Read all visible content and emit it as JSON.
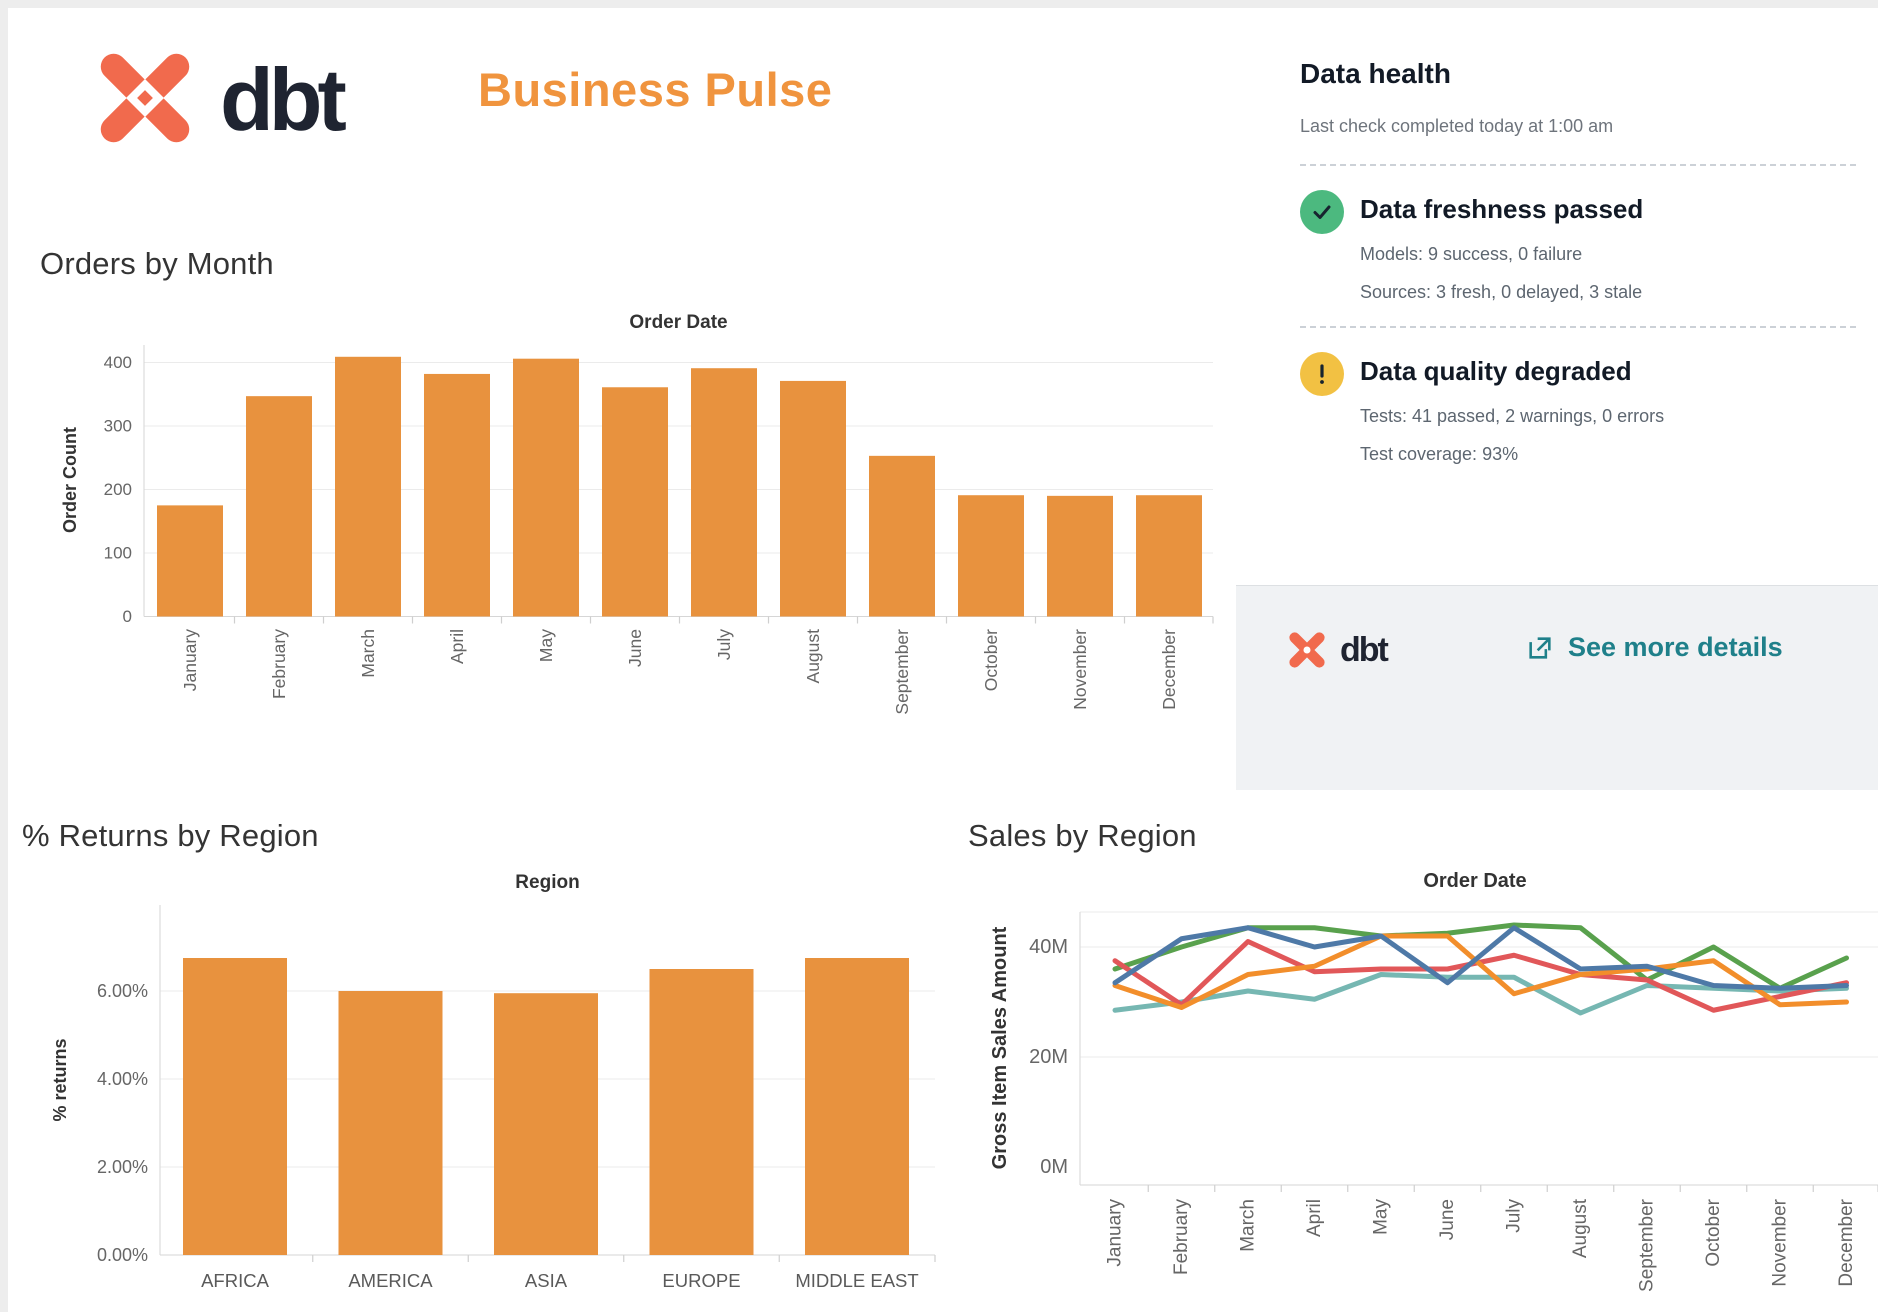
{
  "header": {
    "brand": "dbt",
    "title": "Business Pulse"
  },
  "data_health": {
    "title": "Data health",
    "subtitle": "Last check completed today at 1:00 am",
    "items": [
      {
        "status": "passed",
        "icon": "check-icon",
        "title": "Data freshness passed",
        "lines": [
          "Models: 9 success, 0 failure",
          "Sources: 3 fresh, 0 delayed, 3 stale"
        ]
      },
      {
        "status": "warning",
        "icon": "exclamation-icon",
        "title": "Data quality degraded",
        "lines": [
          "Tests: 41 passed, 2 warnings, 0 errors",
          "Test coverage: 93%"
        ]
      }
    ],
    "footer": {
      "brand": "dbt",
      "link_label": "See more details"
    }
  },
  "colors": {
    "accent_orange": "#f0943e",
    "bar_fill": "#e8923e",
    "logo_coral": "#f16a4d",
    "wordmark_navy": "#1f2431",
    "link_teal": "#1f808a",
    "status_green": "#4cb97f",
    "status_yellow": "#f2c143",
    "grid": "#ebebeb",
    "axis": "#d6d6d6",
    "tick_label": "#666666"
  },
  "chart_data": [
    {
      "type": "bar",
      "title": "Orders by Month",
      "x_axis_title": "Order Date",
      "ylabel": "Order Count",
      "categories": [
        "January",
        "February",
        "March",
        "April",
        "May",
        "June",
        "July",
        "August",
        "September",
        "October",
        "November",
        "December"
      ],
      "values": [
        175,
        347,
        409,
        382,
        406,
        361,
        391,
        371,
        253,
        191,
        190,
        191
      ],
      "yticks": [
        {
          "v": 0,
          "label": "0"
        },
        {
          "v": 100,
          "label": "100"
        },
        {
          "v": 200,
          "label": "200"
        },
        {
          "v": 300,
          "label": "300"
        },
        {
          "v": 400,
          "label": "400"
        }
      ],
      "ylim": [
        0,
        428
      ],
      "bar_color": "#e8923e",
      "grid": true,
      "legend": "none"
    },
    {
      "type": "bar",
      "title": "% Returns by Region",
      "x_axis_title": "Region",
      "ylabel": "% returns",
      "categories": [
        "AFRICA",
        "AMERICA",
        "ASIA",
        "EUROPE",
        "MIDDLE EAST"
      ],
      "values": [
        6.75,
        6.0,
        5.95,
        6.5,
        6.75
      ],
      "yticks": [
        {
          "v": 0,
          "label": "0.00%"
        },
        {
          "v": 2,
          "label": "2.00%"
        },
        {
          "v": 4,
          "label": "4.00%"
        },
        {
          "v": 6,
          "label": "6.00%"
        }
      ],
      "ylim": [
        0,
        8
      ],
      "bar_color": "#e8923e",
      "grid": true,
      "legend": "none"
    },
    {
      "type": "line",
      "title": "Sales by Region",
      "x_axis_title": "Order Date",
      "ylabel": "Gross Item Sales Amount",
      "categories": [
        "January",
        "February",
        "March",
        "April",
        "May",
        "June",
        "July",
        "August",
        "September",
        "October",
        "November",
        "December"
      ],
      "unit": "millions",
      "series": [
        {
          "name": "blue",
          "color": "#4e79a7",
          "values": [
            33.5,
            41.5,
            43.5,
            40,
            42,
            33.5,
            43.5,
            36,
            36.5,
            33,
            32.5,
            33
          ]
        },
        {
          "name": "orange",
          "color": "#f28e2b",
          "values": [
            33,
            29,
            35,
            36.5,
            42,
            42,
            31.5,
            35,
            36,
            37.5,
            29.5,
            30
          ]
        },
        {
          "name": "red",
          "color": "#e15759",
          "values": [
            37.5,
            29.5,
            41,
            35.5,
            36,
            36,
            38.5,
            35,
            34,
            28.5,
            31,
            33.5
          ]
        },
        {
          "name": "teal",
          "color": "#76b7b2",
          "values": [
            28.5,
            30,
            32,
            30.5,
            35,
            34.5,
            34.5,
            28,
            33,
            32.5,
            32,
            32.5
          ]
        },
        {
          "name": "green",
          "color": "#59a14d",
          "values": [
            36,
            40,
            43.5,
            43.5,
            42,
            42.5,
            44,
            43.5,
            34,
            40,
            32.5,
            38
          ]
        }
      ],
      "yticks": [
        {
          "v": 0,
          "label": "0M"
        },
        {
          "v": 20,
          "label": "20M"
        },
        {
          "v": 40,
          "label": "40M"
        }
      ],
      "ylim": [
        0,
        46
      ],
      "grid": true,
      "legend": "none"
    }
  ]
}
